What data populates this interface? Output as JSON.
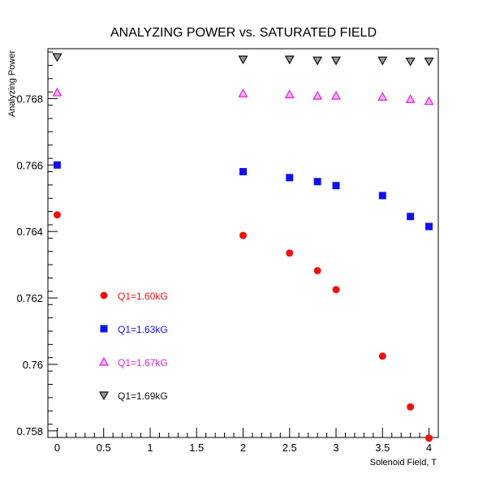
{
  "chart_data": {
    "type": "scatter",
    "title": "ANALYZING POWER vs. SATURATED FIELD",
    "xlabel": "Solenoid Field, T",
    "ylabel": "Analyzing Power",
    "xlim": [
      -0.1,
      4.1
    ],
    "ylim": [
      0.7578,
      0.7695
    ],
    "x_ticks": [
      0,
      0.5,
      1,
      1.5,
      2,
      2.5,
      3,
      3.5,
      4
    ],
    "x_tick_labels": [
      "0",
      "0.5",
      "1",
      "1.5",
      "2",
      "2.5",
      "3",
      "3.5",
      "4"
    ],
    "y_ticks": [
      0.758,
      0.76,
      0.762,
      0.764,
      0.766,
      0.768
    ],
    "y_tick_labels": [
      "0.758",
      "0.76",
      "0.762",
      "0.764",
      "0.766",
      "0.768"
    ],
    "grid": false,
    "legend_position": "inside-left",
    "series": [
      {
        "name": "Q1=1.60kG",
        "color": "#ee1111",
        "marker": "circle",
        "x": [
          0,
          2,
          2.5,
          2.8,
          3,
          3.5,
          3.8,
          4
        ],
        "y": [
          0.7645,
          0.76388,
          0.76335,
          0.76282,
          0.76225,
          0.76025,
          0.75872,
          0.75778
        ]
      },
      {
        "name": "Q1=1.63kG",
        "color": "#1111ee",
        "marker": "square",
        "x": [
          0,
          2,
          2.5,
          2.8,
          3,
          3.5,
          3.8,
          4
        ],
        "y": [
          0.766,
          0.7658,
          0.76562,
          0.7655,
          0.76538,
          0.76508,
          0.76445,
          0.76415
        ]
      },
      {
        "name": "Q1=1.67kG",
        "color": "#dd22dd",
        "marker": "triangle-up",
        "x": [
          0,
          2,
          2.5,
          2.8,
          3,
          3.5,
          3.8,
          4
        ],
        "y": [
          0.76818,
          0.76815,
          0.76812,
          0.76808,
          0.76808,
          0.76805,
          0.76798,
          0.76792
        ]
      },
      {
        "name": "Q1=1.69kG",
        "color": "#111111",
        "marker": "triangle-down",
        "x": [
          0,
          2,
          2.5,
          2.8,
          3,
          3.5,
          3.8,
          4
        ],
        "y": [
          0.76925,
          0.76918,
          0.76918,
          0.76915,
          0.76915,
          0.76915,
          0.76912,
          0.76912
        ]
      }
    ]
  }
}
